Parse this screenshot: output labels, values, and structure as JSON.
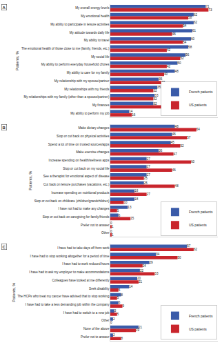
{
  "chart_data": [
    {
      "type": "bar",
      "title": "A",
      "orientation": "horizontal",
      "ylabel": "Patients, %",
      "categories": [
        "My overall energy levels",
        "My emotional health",
        "My ability to participate in leisure activities",
        "My attitude towards daily life",
        "My ability to travel",
        "The emotional health of those close to me (family, friends, etc.)",
        "My social life",
        "My ability to perform everyday household chores",
        "My ability to care for my family",
        "My relationship with my spouse/partner",
        "My relationships with my friends",
        "My relationships with my family (other than a spouse/partner)",
        "My finances",
        "My ability to perform my job"
      ],
      "series": [
        {
          "name": "French patients",
          "color": "#3a5ba9",
          "values": [
            71,
            62,
            62,
            61,
            60,
            58,
            56,
            50,
            48,
            36,
            35,
            33,
            32,
            14
          ]
        },
        {
          "name": "US patients",
          "color": "#c9252c",
          "values": [
            73,
            58,
            54,
            46,
            54,
            42,
            52,
            42,
            40,
            38,
            32,
            32,
            59,
            16
          ]
        }
      ],
      "xlim": [
        0,
        80
      ],
      "xticks": [],
      "tick_labels": "y",
      "data_labels": true,
      "legend": "lower right",
      "grid": false
    },
    {
      "type": "bar",
      "title": "B",
      "orientation": "horizontal",
      "ylabel": "Patients, %",
      "categories": [
        "Make dietary changes",
        "Stop or cut back on physical activities",
        "Spend a lot of time on trusted sources/apps",
        "Make exercise changes",
        "Increase spending on health/wellness apps",
        "Stop or cut back on my social life",
        "See a therapist for emotional aspect of disease",
        "Cut back on leisure purchases (vacations, etc.)",
        "Increase spending on nutritional products",
        "Stop or cut back on childcare (children/grandchildren)",
        "I have not had to make any changes",
        "Stop or cut back on caregiving for family/friends",
        "Prefer not to answer",
        "Other"
      ],
      "series": [
        {
          "name": "French patients",
          "color": "#3a5ba9",
          "values": [
            48,
            46,
            45,
            36,
            27,
            27,
            27,
            25,
            18,
            18,
            13,
            6,
            0,
            0
          ]
        },
        {
          "name": "US patients",
          "color": "#c9252c",
          "values": [
            64,
            57,
            52,
            47,
            60,
            46,
            25,
            48,
            27,
            10,
            5,
            15,
            1,
            1
          ]
        }
      ],
      "xlim": [
        0,
        80
      ],
      "xticks": [],
      "tick_labels": "y",
      "data_labels": true,
      "legend": "lower right",
      "grid": false
    },
    {
      "type": "bar",
      "title": "C",
      "orientation": "horizontal",
      "ylabel": "Patients, %",
      "categories": [
        "I have had to take days off from work",
        "I have had to stop working altogether for a period of time",
        "I have had to work reduced hours",
        "I have had to ask my employer to make accommodations",
        "Colleagues have looked at me differently",
        "Seek disability",
        "The HCPs who treat my cancer have advised that to stop working",
        "I have had to take a less demanding job within the company",
        "I have had to switch to a new job",
        "Other",
        "None of the above",
        "Prefer not to answer"
      ],
      "series": [
        {
          "name": "French patients",
          "color": "#3a5ba9",
          "values": [
            57,
            34,
            29,
            22,
            20,
            14,
            8,
            6,
            3,
            2,
            21,
            2
          ]
        },
        {
          "name": "US patients",
          "color": "#c9252c",
          "values": [
            62,
            50,
            24,
            33,
            21,
            6,
            5,
            9,
            5,
            0,
            19,
            8
          ]
        }
      ],
      "xlim": [
        0,
        80
      ],
      "xticks": [],
      "tick_labels": "y",
      "data_labels": true,
      "legend": "lower right",
      "grid": false
    }
  ]
}
